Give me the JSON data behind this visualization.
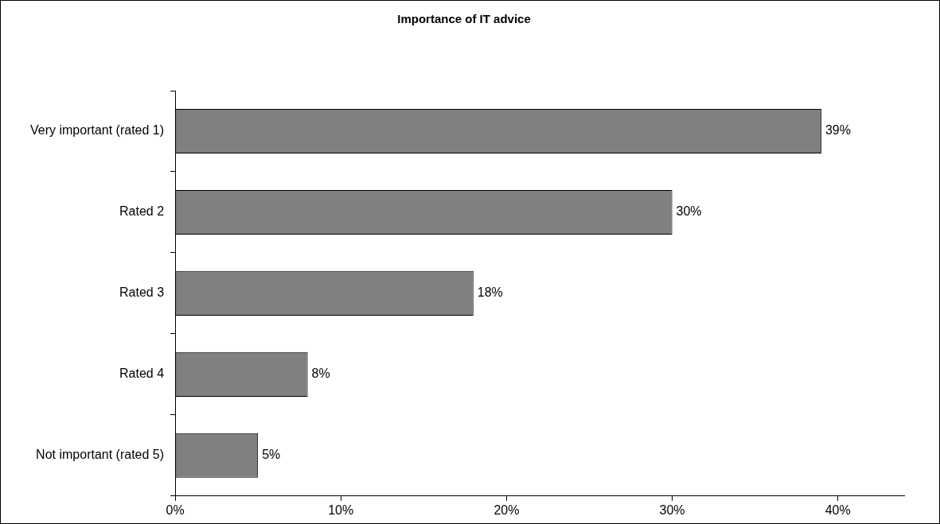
{
  "chart_data": {
    "type": "bar",
    "orientation": "horizontal",
    "title": "Importance of IT advice",
    "categories": [
      "Very important (rated 1)",
      "Rated 2",
      "Rated 3",
      "Rated 4",
      "Not important (rated 5)"
    ],
    "values": [
      39,
      30,
      18,
      8,
      5
    ],
    "value_labels": [
      "39%",
      "30%",
      "18%",
      "8%",
      "5%"
    ],
    "color": "#808080",
    "xlim": [
      0,
      44
    ],
    "xticks": [
      {
        "value": 0,
        "label": "0%"
      },
      {
        "value": 10,
        "label": "10%"
      },
      {
        "value": 20,
        "label": "20%"
      },
      {
        "value": 30,
        "label": "30%"
      },
      {
        "value": 40,
        "label": "40%"
      }
    ],
    "grid": false,
    "legend": false
  }
}
